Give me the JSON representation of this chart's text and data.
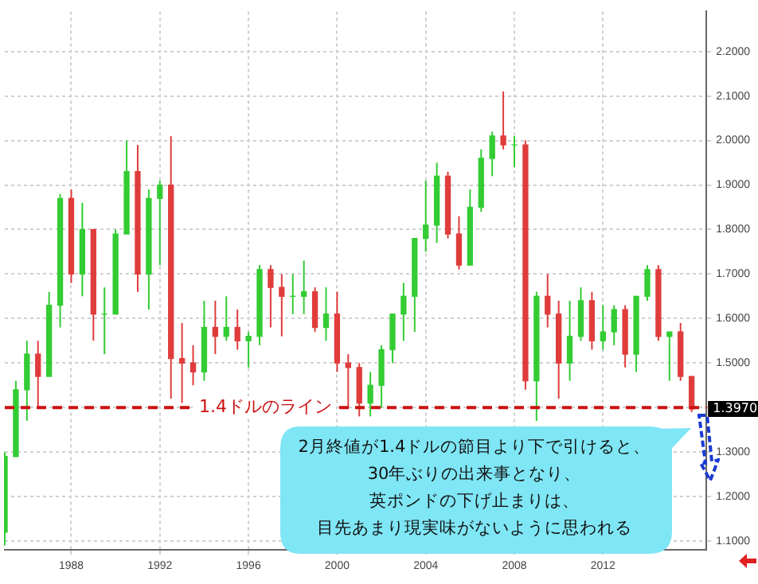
{
  "chart_data": {
    "type": "candlestick",
    "x": [
      "1985-01",
      "1985-07",
      "1986-01",
      "1986-07",
      "1987-01",
      "1987-07",
      "1988-01",
      "1988-07",
      "1989-01",
      "1989-07",
      "1990-01",
      "1990-07",
      "1991-01",
      "1991-07",
      "1992-01",
      "1992-07",
      "1993-01",
      "1993-07",
      "1994-01",
      "1994-07",
      "1995-01",
      "1995-07",
      "1996-01",
      "1996-07",
      "1997-01",
      "1997-07",
      "1998-01",
      "1998-07",
      "1999-01",
      "1999-07",
      "2000-01",
      "2000-07",
      "2001-01",
      "2001-07",
      "2002-01",
      "2002-07",
      "2003-01",
      "2003-07",
      "2004-01",
      "2004-07",
      "2005-01",
      "2005-07",
      "2006-01",
      "2006-07",
      "2007-01",
      "2007-07",
      "2008-01",
      "2008-07",
      "2009-01",
      "2009-07",
      "2010-01",
      "2010-07",
      "2011-01",
      "2011-07",
      "2012-01",
      "2012-07",
      "2013-01",
      "2013-07",
      "2014-01",
      "2014-07",
      "2015-01",
      "2015-07",
      "2016-01"
    ],
    "ohlc": [
      [
        1.12,
        1.3,
        1.09,
        1.29
      ],
      [
        1.29,
        1.46,
        1.29,
        1.44
      ],
      [
        1.44,
        1.55,
        1.37,
        1.52
      ],
      [
        1.52,
        1.55,
        1.4,
        1.47
      ],
      [
        1.47,
        1.66,
        1.47,
        1.63
      ],
      [
        1.63,
        1.88,
        1.58,
        1.87
      ],
      [
        1.87,
        1.89,
        1.68,
        1.7
      ],
      [
        1.7,
        1.86,
        1.65,
        1.8
      ],
      [
        1.8,
        1.8,
        1.55,
        1.61
      ],
      [
        1.61,
        1.67,
        1.52,
        1.61
      ],
      [
        1.61,
        1.8,
        1.61,
        1.79
      ],
      [
        1.79,
        2.0,
        1.79,
        1.93
      ],
      [
        1.93,
        1.99,
        1.66,
        1.7
      ],
      [
        1.7,
        1.89,
        1.62,
        1.87
      ],
      [
        1.87,
        1.91,
        1.72,
        1.9
      ],
      [
        1.9,
        2.01,
        1.42,
        1.51
      ],
      [
        1.51,
        1.59,
        1.41,
        1.5
      ],
      [
        1.5,
        1.54,
        1.45,
        1.48
      ],
      [
        1.48,
        1.64,
        1.46,
        1.58
      ],
      [
        1.58,
        1.64,
        1.52,
        1.56
      ],
      [
        1.56,
        1.65,
        1.55,
        1.58
      ],
      [
        1.58,
        1.62,
        1.53,
        1.55
      ],
      [
        1.55,
        1.57,
        1.49,
        1.56
      ],
      [
        1.56,
        1.72,
        1.54,
        1.71
      ],
      [
        1.71,
        1.72,
        1.58,
        1.67
      ],
      [
        1.67,
        1.7,
        1.56,
        1.65
      ],
      [
        1.65,
        1.7,
        1.61,
        1.65
      ],
      [
        1.65,
        1.73,
        1.61,
        1.66
      ],
      [
        1.66,
        1.67,
        1.57,
        1.58
      ],
      [
        1.58,
        1.67,
        1.55,
        1.61
      ],
      [
        1.61,
        1.66,
        1.48,
        1.5
      ],
      [
        1.5,
        1.52,
        1.4,
        1.49
      ],
      [
        1.49,
        1.5,
        1.38,
        1.41
      ],
      [
        1.41,
        1.48,
        1.38,
        1.45
      ],
      [
        1.45,
        1.54,
        1.4,
        1.53
      ],
      [
        1.53,
        1.61,
        1.5,
        1.61
      ],
      [
        1.61,
        1.68,
        1.55,
        1.65
      ],
      [
        1.65,
        1.78,
        1.57,
        1.78
      ],
      [
        1.78,
        1.91,
        1.75,
        1.81
      ],
      [
        1.81,
        1.95,
        1.77,
        1.92
      ],
      [
        1.92,
        1.93,
        1.78,
        1.79
      ],
      [
        1.79,
        1.83,
        1.71,
        1.72
      ],
      [
        1.72,
        1.89,
        1.72,
        1.85
      ],
      [
        1.85,
        1.98,
        1.84,
        1.96
      ],
      [
        1.96,
        2.02,
        1.92,
        2.01
      ],
      [
        2.01,
        2.11,
        1.98,
        1.99
      ],
      [
        1.99,
        2.01,
        1.94,
        1.99
      ],
      [
        1.99,
        2.0,
        1.44,
        1.46
      ],
      [
        1.46,
        1.66,
        1.37,
        1.65
      ],
      [
        1.65,
        1.7,
        1.58,
        1.61
      ],
      [
        1.61,
        1.64,
        1.42,
        1.5
      ],
      [
        1.5,
        1.64,
        1.46,
        1.56
      ],
      [
        1.56,
        1.67,
        1.55,
        1.64
      ],
      [
        1.64,
        1.66,
        1.53,
        1.55
      ],
      [
        1.55,
        1.63,
        1.53,
        1.57
      ],
      [
        1.57,
        1.63,
        1.54,
        1.62
      ],
      [
        1.62,
        1.63,
        1.49,
        1.52
      ],
      [
        1.52,
        1.65,
        1.48,
        1.65
      ],
      [
        1.65,
        1.72,
        1.64,
        1.71
      ],
      [
        1.71,
        1.72,
        1.55,
        1.56
      ],
      [
        1.56,
        1.57,
        1.46,
        1.57
      ],
      [
        1.57,
        1.59,
        1.46,
        1.47
      ],
      [
        1.47,
        1.47,
        1.39,
        1.397
      ]
    ],
    "colors": [
      "#33cc33",
      "#33cc33",
      "#33cc33",
      "#e03c3c",
      "#33cc33",
      "#33cc33",
      "#e03c3c",
      "#33cc33",
      "#e03c3c",
      "#33cc33",
      "#33cc33",
      "#33cc33",
      "#e03c3c",
      "#33cc33",
      "#33cc33",
      "#e03c3c",
      "#e03c3c",
      "#e03c3c",
      "#33cc33",
      "#e03c3c",
      "#33cc33",
      "#e03c3c",
      "#33cc33",
      "#33cc33",
      "#e03c3c",
      "#e03c3c",
      "#33cc33",
      "#33cc33",
      "#e03c3c",
      "#33cc33",
      "#e03c3c",
      "#e03c3c",
      "#e03c3c",
      "#33cc33",
      "#33cc33",
      "#33cc33",
      "#33cc33",
      "#33cc33",
      "#33cc33",
      "#33cc33",
      "#e03c3c",
      "#e03c3c",
      "#33cc33",
      "#33cc33",
      "#33cc33",
      "#e03c3c",
      "#33cc33",
      "#e03c3c",
      "#33cc33",
      "#e03c3c",
      "#e03c3c",
      "#33cc33",
      "#33cc33",
      "#e03c3c",
      "#33cc33",
      "#33cc33",
      "#e03c3c",
      "#33cc33",
      "#33cc33",
      "#e03c3c",
      "#33cc33",
      "#e03c3c",
      "#e03c3c"
    ],
    "xlim": [
      "1985-01",
      "2016-09"
    ],
    "xticks": [
      "1988",
      "1992",
      "1996",
      "2000",
      "2004",
      "2008",
      "2012"
    ],
    "ylim": [
      1.08,
      2.29
    ],
    "yticks": [
      {
        "value": 1.1,
        "label": "1.1000"
      },
      {
        "value": 1.2,
        "label": "1.2000"
      },
      {
        "value": 1.3,
        "label": "1.3000"
      },
      {
        "value": 1.4,
        "label": null
      },
      {
        "value": 1.5,
        "label": "1.5000"
      },
      {
        "value": 1.6,
        "label": "1.6000"
      },
      {
        "value": 1.7,
        "label": "1.7000"
      },
      {
        "value": 1.8,
        "label": "1.8000"
      },
      {
        "value": 1.9,
        "label": "1.9000"
      },
      {
        "value": 2.0,
        "label": "2.0000"
      },
      {
        "value": 2.1,
        "label": "2.1000"
      },
      {
        "value": 2.2,
        "label": "2.2000"
      }
    ],
    "ref_lines": [
      {
        "axis": "y",
        "value": 1.4,
        "label": "1.4ドルのライン",
        "color": "#cc1111",
        "line_style": "dashed"
      }
    ],
    "annotations": [
      {
        "text": "1.3970",
        "x": "2016-09",
        "y": 1.397
      },
      "2月終値が1.4ドルの節目より下で引けると、30年ぶりの出来事となり、英ポンドの下げ止まりは、目先あまり現実味がないように思われる"
    ],
    "grid": true,
    "legend": false
  }
}
